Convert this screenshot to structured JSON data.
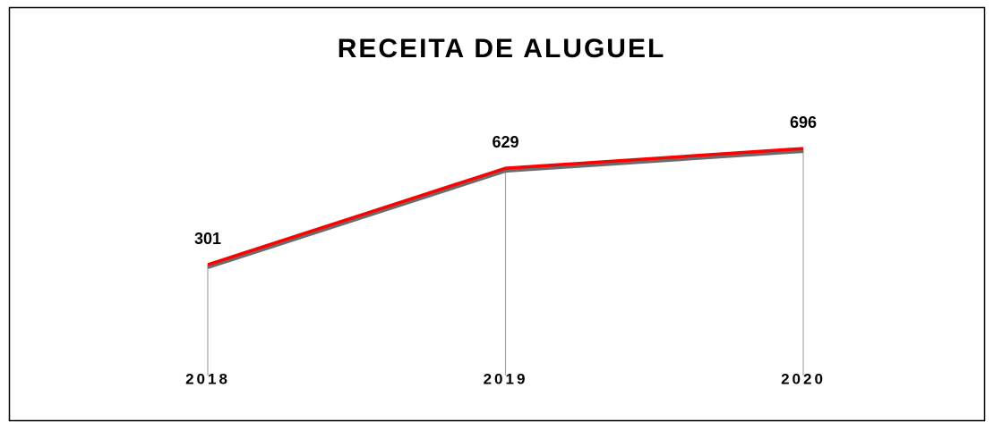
{
  "chart_data": {
    "type": "line",
    "title": "RECEITA DE ALUGUEL",
    "categories": [
      "2018",
      "2019",
      "2020"
    ],
    "values": [
      301,
      629,
      696
    ],
    "color": "#ff0000",
    "ylim": [
      0,
      900
    ]
  }
}
